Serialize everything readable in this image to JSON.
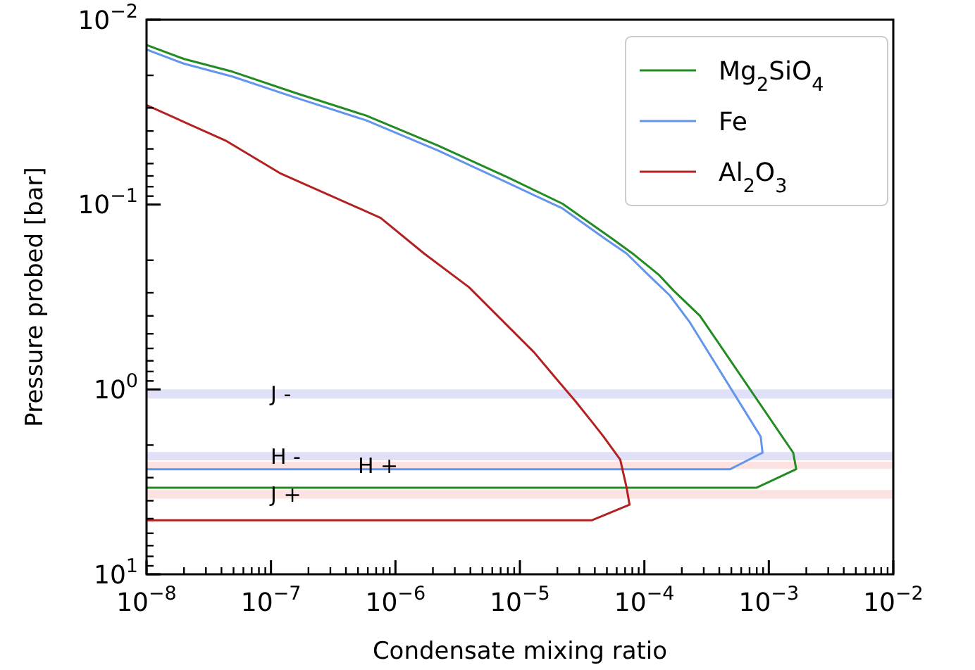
{
  "chart_data": {
    "type": "line",
    "xlabel": "Condensate mixing ratio",
    "ylabel": "Pressure probed [bar]",
    "log": "xy",
    "legend": "top right",
    "grid": false,
    "line_style": "solid",
    "marker": "none",
    "xlim": [
      1e-08,
      0.01
    ],
    "ylim": [
      10,
      0.01
    ],
    "xticks": [
      {
        "value": 1e-08,
        "label": "10$^{−8}$"
      },
      {
        "value": 2e-08,
        "label": null
      },
      {
        "value": 3e-08,
        "label": null
      },
      {
        "value": 4e-08,
        "label": null
      },
      {
        "value": 5e-08,
        "label": null
      },
      {
        "value": 6e-08,
        "label": null
      },
      {
        "value": 7e-08,
        "label": null
      },
      {
        "value": 8e-08,
        "label": null
      },
      {
        "value": 9e-08,
        "label": null
      },
      {
        "value": 1e-07,
        "label": "10$^{−7}$"
      },
      {
        "value": 2e-07,
        "label": null
      },
      {
        "value": 3e-07,
        "label": null
      },
      {
        "value": 4e-07,
        "label": null
      },
      {
        "value": 5e-07,
        "label": null
      },
      {
        "value": 6e-07,
        "label": null
      },
      {
        "value": 7e-07,
        "label": null
      },
      {
        "value": 8e-07,
        "label": null
      },
      {
        "value": 9e-07,
        "label": null
      },
      {
        "value": 1e-06,
        "label": "10$^{−6}$"
      },
      {
        "value": 2e-06,
        "label": null
      },
      {
        "value": 3e-06,
        "label": null
      },
      {
        "value": 4e-06,
        "label": null
      },
      {
        "value": 5e-06,
        "label": null
      },
      {
        "value": 6e-06,
        "label": null
      },
      {
        "value": 7e-06,
        "label": null
      },
      {
        "value": 8e-06,
        "label": null
      },
      {
        "value": 9e-06,
        "label": null
      },
      {
        "value": 1e-05,
        "label": "10$^{−5}$"
      },
      {
        "value": 2e-05,
        "label": null
      },
      {
        "value": 3e-05,
        "label": null
      },
      {
        "value": 4e-05,
        "label": null
      },
      {
        "value": 5e-05,
        "label": null
      },
      {
        "value": 6e-05,
        "label": null
      },
      {
        "value": 7e-05,
        "label": null
      },
      {
        "value": 8e-05,
        "label": null
      },
      {
        "value": 9e-05,
        "label": null
      },
      {
        "value": 0.0001,
        "label": "10$^{−4}$"
      },
      {
        "value": 0.0002,
        "label": null
      },
      {
        "value": 0.0003,
        "label": null
      },
      {
        "value": 0.0004,
        "label": null
      },
      {
        "value": 0.0005,
        "label": null
      },
      {
        "value": 0.0006,
        "label": null
      },
      {
        "value": 0.0007,
        "label": null
      },
      {
        "value": 0.0008,
        "label": null
      },
      {
        "value": 0.0009,
        "label": null
      },
      {
        "value": 0.001,
        "label": "10$^{−3}$"
      },
      {
        "value": 0.002,
        "label": null
      },
      {
        "value": 0.003,
        "label": null
      },
      {
        "value": 0.004,
        "label": null
      },
      {
        "value": 0.005,
        "label": null
      },
      {
        "value": 0.006,
        "label": null
      },
      {
        "value": 0.007,
        "label": null
      },
      {
        "value": 0.008,
        "label": null
      },
      {
        "value": 0.009,
        "label": null
      },
      {
        "value": 0.01,
        "label": "10$^{−2}$"
      }
    ],
    "yticks": [
      {
        "value": 0.01,
        "label": "10$^{−2}$"
      },
      {
        "value": 0.02,
        "label": null
      },
      {
        "value": 0.03,
        "label": null
      },
      {
        "value": 0.04,
        "label": null
      },
      {
        "value": 0.05,
        "label": null
      },
      {
        "value": 0.06,
        "label": null
      },
      {
        "value": 0.07,
        "label": null
      },
      {
        "value": 0.08,
        "label": null
      },
      {
        "value": 0.09,
        "label": null
      },
      {
        "value": 0.1,
        "label": "10$^{−1}$"
      },
      {
        "value": 0.2,
        "label": null
      },
      {
        "value": 0.3,
        "label": null
      },
      {
        "value": 0.4,
        "label": null
      },
      {
        "value": 0.5,
        "label": null
      },
      {
        "value": 0.6,
        "label": null
      },
      {
        "value": 0.7,
        "label": null
      },
      {
        "value": 0.8,
        "label": null
      },
      {
        "value": 0.9,
        "label": null
      },
      {
        "value": 1,
        "label": "10$^{0}$"
      },
      {
        "value": 2,
        "label": null
      },
      {
        "value": 3,
        "label": null
      },
      {
        "value": 4,
        "label": null
      },
      {
        "value": 5,
        "label": null
      },
      {
        "value": 6,
        "label": null
      },
      {
        "value": 7,
        "label": null
      },
      {
        "value": 8,
        "label": null
      },
      {
        "value": 9,
        "label": null
      },
      {
        "value": 10,
        "label": "10$^{1}$"
      }
    ],
    "series": [
      {
        "name": "Mg$_{2}$SiO$_{4}$",
        "color": "#228b22",
        "x": [
          1e-08,
          2e-08,
          4.9e-08,
          1.6e-07,
          5.8e-07,
          2.2e-06,
          7.9e-06,
          2.2e-05,
          5.6e-05,
          8.3e-05,
          0.00013,
          0.00017,
          0.00028,
          0.00157,
          0.00166,
          0.0008,
          1e-08
        ],
        "values": [
          0.0137,
          0.0163,
          0.0191,
          0.025,
          0.033,
          0.048,
          0.071,
          0.099,
          0.154,
          0.187,
          0.239,
          0.29,
          0.4,
          2.2,
          2.7,
          3.4,
          3.4
        ]
      },
      {
        "name": "Fe",
        "color": "#6495ed",
        "x": [
          1e-08,
          2e-08,
          4.9e-08,
          1.6e-07,
          5.8e-07,
          2.2e-06,
          7.9e-06,
          2.2e-05,
          4.9e-05,
          7.2e-05,
          0.000107,
          0.00016,
          0.00023,
          0.00086,
          0.00089,
          0.00049,
          1e-08
        ],
        "values": [
          0.0145,
          0.0173,
          0.0203,
          0.0265,
          0.035,
          0.051,
          0.076,
          0.105,
          0.154,
          0.184,
          0.239,
          0.31,
          0.43,
          1.8,
          2.2,
          2.7,
          2.7
        ]
      },
      {
        "name": "Al$_{2}$O$_{3}$",
        "color": "#b22222",
        "x": [
          1e-08,
          4.3e-08,
          1.2e-07,
          7.6e-07,
          1.7e-06,
          3.9e-06,
          1.3e-05,
          2e-05,
          2.8e-05,
          3.8e-05,
          4.7e-05,
          6.4e-05,
          7.2e-05,
          7.6e-05,
          3.8e-05,
          1e-08
        ],
        "values": [
          0.029,
          0.045,
          0.068,
          0.118,
          0.184,
          0.28,
          0.63,
          0.89,
          1.16,
          1.5,
          1.8,
          2.4,
          3.4,
          4.2,
          5.1,
          5.1
        ]
      }
    ],
    "bands": [
      {
        "axis": "y",
        "from": 1.0,
        "to": 1.12,
        "color": "#e0e0f8",
        "label": "J -"
      },
      {
        "axis": "y",
        "from": 2.18,
        "to": 2.42,
        "color": "#e0e0f8",
        "label": "H -"
      },
      {
        "axis": "y",
        "from": 2.46,
        "to": 2.69,
        "color": "#fde2e2",
        "label": "H +"
      },
      {
        "axis": "y",
        "from": 3.5,
        "to": 3.9,
        "color": "#fde2e2",
        "label": "J +"
      }
    ]
  }
}
